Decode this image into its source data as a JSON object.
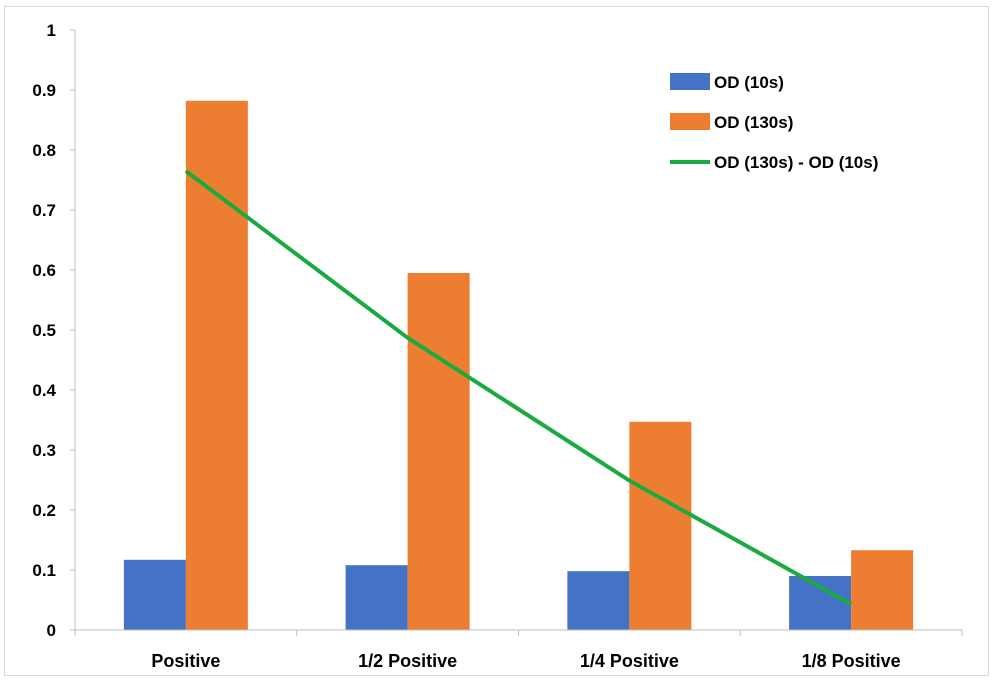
{
  "chart_data": {
    "type": "bar",
    "title": "",
    "xlabel": "",
    "ylabel": "",
    "ylim": [
      0,
      1
    ],
    "yticks": [
      "0",
      "0.1",
      "0.2",
      "0.3",
      "0.4",
      "0.5",
      "0.6",
      "0.7",
      "0.8",
      "0.9",
      "1"
    ],
    "grid": false,
    "legend_position": "top-right",
    "categories": [
      "Positive",
      "1/2 Positive",
      "1/4 Positive",
      "1/8 Positive"
    ],
    "series": [
      {
        "name": "OD (10s)",
        "kind": "bar",
        "color": "#4472c4",
        "values": [
          0.117,
          0.108,
          0.098,
          0.09
        ]
      },
      {
        "name": "OD (130s)",
        "kind": "bar",
        "color": "#ed7d31",
        "values": [
          0.882,
          0.595,
          0.347,
          0.133
        ]
      },
      {
        "name": "OD (130s) - OD (10s)",
        "kind": "line",
        "color": "#1aab40",
        "values": [
          0.765,
          0.487,
          0.249,
          0.043
        ]
      }
    ]
  }
}
